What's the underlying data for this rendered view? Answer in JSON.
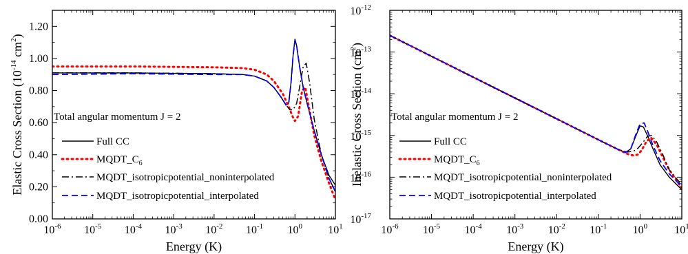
{
  "colors": {
    "full_cc": "#000000",
    "mqdt_c6": "#ff0000",
    "mqdt_noninterp": "#000000",
    "mqdt_interp": "#0000ff",
    "axes": "#000000",
    "background": "#ffffff"
  },
  "chart_data": [
    {
      "type": "line",
      "title": "",
      "xlabel": "Energy (K)",
      "ylabel_main": "Elastic Cross Section (10",
      "ylabel_exp": "-14",
      "ylabel_unit": " cm",
      "ylabel_unit_exp": "2",
      "ylabel_close": ")",
      "xscale": "log",
      "xlim": [
        1e-06,
        10
      ],
      "yscale": "linear",
      "ylim": [
        0.0,
        1.3
      ],
      "x_tick_base": "10",
      "x_tick_exponents": [
        "-6",
        "-5",
        "-4",
        "-3",
        "-2",
        "-1",
        "0",
        "1"
      ],
      "y_ticks": [
        "0.00",
        "0.20",
        "0.40",
        "0.60",
        "0.80",
        "1.00",
        "1.20"
      ],
      "annotation": "Total angular momentum J = 2",
      "legend_position": "lower-left",
      "legend": [
        {
          "key": "full",
          "text": "Full CC",
          "style": "solid"
        },
        {
          "key": "c6",
          "text": "MQDT_C",
          "sub": "6",
          "style": "dotted"
        },
        {
          "key": "nonint",
          "text": "MQDT_isotropicpotential_noninterpolated",
          "style": "dashdot"
        },
        {
          "key": "interp",
          "text": "MQDT_isotropicpotential_interpolated",
          "style": "dashed"
        }
      ],
      "series": [
        {
          "key": "full",
          "name": "Full CC",
          "x": [
            1e-06,
            0.0001,
            0.01,
            0.05,
            0.1,
            0.2,
            0.3,
            0.45,
            0.6,
            0.7,
            0.8,
            0.9,
            1.0,
            1.1,
            1.3,
            1.6,
            2.0,
            3.0,
            4.5,
            7.0,
            10.0
          ],
          "y": [
            0.91,
            0.91,
            0.905,
            0.9,
            0.89,
            0.86,
            0.82,
            0.76,
            0.71,
            0.72,
            0.85,
            1.02,
            1.12,
            1.08,
            0.95,
            0.82,
            0.72,
            0.55,
            0.4,
            0.27,
            0.21
          ]
        },
        {
          "key": "c6",
          "name": "MQDT_C6",
          "x": [
            1e-06,
            0.0001,
            0.01,
            0.05,
            0.1,
            0.2,
            0.3,
            0.5,
            0.7,
            0.9,
            1.0,
            1.2,
            1.5,
            1.8,
            2.2,
            3.0,
            4.5,
            7.0,
            10.0
          ],
          "y": [
            0.95,
            0.95,
            0.945,
            0.94,
            0.93,
            0.9,
            0.86,
            0.78,
            0.7,
            0.63,
            0.61,
            0.64,
            0.8,
            0.82,
            0.7,
            0.52,
            0.36,
            0.22,
            0.12
          ]
        },
        {
          "key": "nonint",
          "name": "MQDT_isotropicpotential_noninterpolated",
          "x": [
            1e-06,
            0.0001,
            0.01,
            0.05,
            0.1,
            0.2,
            0.3,
            0.45,
            0.6,
            0.75,
            0.9,
            1.1,
            1.3,
            1.6,
            1.9,
            2.3,
            3.0,
            4.5,
            7.0,
            10.0
          ],
          "y": [
            0.91,
            0.91,
            0.905,
            0.9,
            0.89,
            0.86,
            0.82,
            0.76,
            0.71,
            0.68,
            0.68,
            0.72,
            0.82,
            0.95,
            0.97,
            0.85,
            0.62,
            0.4,
            0.25,
            0.17
          ]
        },
        {
          "key": "interp",
          "name": "MQDT_isotropicpotential_interpolated",
          "x": [
            1e-06,
            0.0001,
            0.01,
            0.05,
            0.1,
            0.2,
            0.3,
            0.45,
            0.6,
            0.7,
            0.8,
            0.9,
            1.0,
            1.1,
            1.3,
            1.6,
            2.0,
            3.0,
            4.5,
            7.0,
            10.0
          ],
          "y": [
            0.9,
            0.905,
            0.9,
            0.9,
            0.89,
            0.86,
            0.82,
            0.76,
            0.71,
            0.72,
            0.85,
            1.02,
            1.11,
            1.08,
            0.95,
            0.82,
            0.72,
            0.55,
            0.4,
            0.25,
            0.17
          ]
        }
      ]
    },
    {
      "type": "line",
      "title": "",
      "xlabel": "Energy (K)",
      "ylabel_main": "Inelastic Cross Section (cm",
      "ylabel_exp": "2",
      "ylabel_unit": "",
      "ylabel_unit_exp": "",
      "ylabel_close": ")",
      "xscale": "log",
      "xlim": [
        1e-06,
        10
      ],
      "yscale": "log",
      "ylim": [
        1e-17,
        1e-12
      ],
      "x_tick_base": "10",
      "x_tick_exponents": [
        "-6",
        "-5",
        "-4",
        "-3",
        "-2",
        "-1",
        "0",
        "1"
      ],
      "y_tick_base": "10",
      "y_tick_exponents": [
        "-17",
        "-16",
        "-15",
        "-14",
        "-13",
        "-12"
      ],
      "annotation": "Total angular momentum J = 2",
      "legend_position": "lower-left",
      "legend": [
        {
          "key": "full",
          "text": "Full CC",
          "style": "solid"
        },
        {
          "key": "c6",
          "text": "MQDT_C",
          "sub": "6",
          "style": "dotted"
        },
        {
          "key": "nonint",
          "text": "MQDT_isotropicpotential_noninterpolated",
          "style": "dashdot"
        },
        {
          "key": "interp",
          "text": "MQDT_isotropicpotential_interpolated",
          "style": "dashed"
        }
      ],
      "series": [
        {
          "key": "full",
          "name": "Full CC",
          "x": [
            1e-06,
            1e-05,
            0.0001,
            0.001,
            0.01,
            0.1,
            0.3,
            0.45,
            0.6,
            0.8,
            1.0,
            1.2,
            1.5,
            2.0,
            3.0,
            5.0,
            10.0
          ],
          "y": [
            2.5e-13,
            7.9e-14,
            2.5e-14,
            7.9e-15,
            2.5e-15,
            7.9e-16,
            4.6e-16,
            3.9e-16,
            4.8e-16,
            1e-15,
            1.7e-15,
            1.6e-15,
            1e-15,
            5e-16,
            2e-16,
            1e-16,
            5e-17
          ]
        },
        {
          "key": "c6",
          "name": "MQDT_C6",
          "x": [
            1e-06,
            1e-05,
            0.0001,
            0.001,
            0.01,
            0.1,
            0.3,
            0.5,
            0.7,
            0.9,
            1.1,
            1.4,
            1.8,
            2.5,
            3.5,
            5.0,
            10.0
          ],
          "y": [
            2.5e-13,
            7.9e-14,
            2.5e-14,
            7.9e-15,
            2.5e-15,
            7.9e-16,
            4.6e-16,
            3.6e-16,
            3.3e-16,
            3.5e-16,
            4.5e-16,
            7e-16,
            9e-16,
            6e-16,
            3e-16,
            1.5e-16,
            5.5e-17
          ]
        },
        {
          "key": "nonint",
          "name": "MQDT_isotropicpotential_noninterpolated",
          "x": [
            1e-06,
            1e-05,
            0.0001,
            0.001,
            0.01,
            0.1,
            0.3,
            0.5,
            0.7,
            0.9,
            1.2,
            1.5,
            1.9,
            2.5,
            3.5,
            5.0,
            10.0
          ],
          "y": [
            2.5e-13,
            7.9e-14,
            2.5e-14,
            7.9e-15,
            2.5e-15,
            7.9e-16,
            4.6e-16,
            4e-16,
            4.2e-16,
            5e-16,
            7e-16,
            9.5e-16,
            1e-15,
            7e-16,
            3.5e-16,
            1.5e-16,
            6.5e-17
          ]
        },
        {
          "key": "interp",
          "name": "MQDT_isotropicpotential_interpolated",
          "x": [
            1e-06,
            1e-05,
            0.0001,
            0.001,
            0.01,
            0.1,
            0.3,
            0.45,
            0.6,
            0.8,
            1.0,
            1.25,
            1.5,
            2.0,
            3.0,
            5.0,
            10.0
          ],
          "y": [
            2.5e-13,
            7.9e-14,
            2.5e-14,
            7.9e-15,
            2.5e-15,
            7.9e-16,
            4.6e-16,
            3.9e-16,
            4.8e-16,
            1.1e-15,
            1.9e-15,
            2e-15,
            1.3e-15,
            6e-16,
            2.5e-16,
            1.2e-16,
            6e-17
          ]
        }
      ]
    }
  ]
}
